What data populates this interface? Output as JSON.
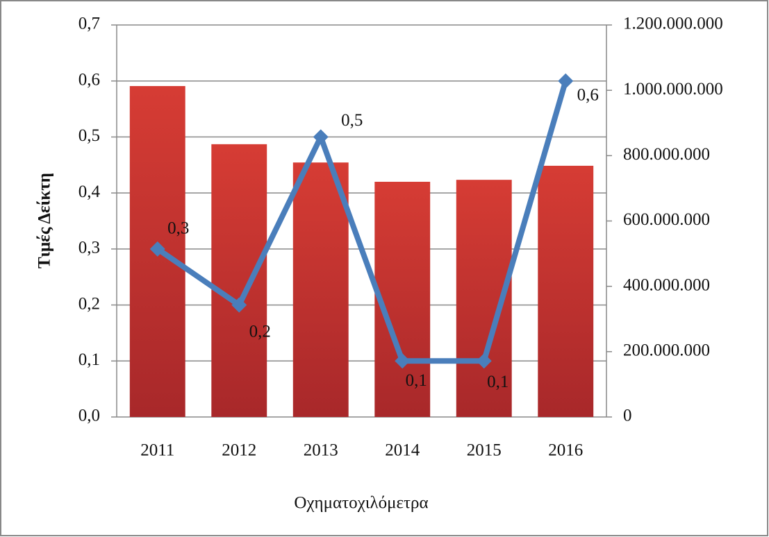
{
  "chart_data": {
    "type": "bar-line",
    "x_label": "Οχηματοχιλόμετρα",
    "y_label": "Τιμές Δείκτη",
    "categories": [
      "2011",
      "2012",
      "2013",
      "2014",
      "2015",
      "2016"
    ],
    "series": [
      {
        "type": "bar",
        "axis": "y2",
        "color": "#c0392b",
        "values": [
          1013000000,
          835000000,
          779000000,
          720000000,
          726000000,
          769000000
        ]
      },
      {
        "type": "line",
        "axis": "y",
        "color": "#4a7ebb",
        "values": [
          0.3,
          0.2,
          0.5,
          0.1,
          0.1,
          0.6
        ],
        "value_labels": [
          "0,3",
          "0,2",
          "0,5",
          "0,1",
          "0,1",
          "0,6"
        ]
      }
    ],
    "ylim": [
      0,
      0.7
    ],
    "yticks": [
      {
        "value": 0,
        "label": "0,0"
      },
      {
        "value": 0.1,
        "label": "0,1"
      },
      {
        "value": 0.2,
        "label": "0,2"
      },
      {
        "value": 0.3,
        "label": "0,3"
      },
      {
        "value": 0.4,
        "label": "0,4"
      },
      {
        "value": 0.5,
        "label": "0,5"
      },
      {
        "value": 0.6,
        "label": "0,6"
      },
      {
        "value": 0.7,
        "label": "0,7"
      }
    ],
    "y2lim": [
      0,
      1200000000
    ],
    "y2ticks": [
      0,
      {
        "value": 200000000,
        "label": "200.000.000"
      },
      {
        "value": 400000000,
        "label": "400.000.000"
      },
      {
        "value": 600000000,
        "label": "600.000.000"
      },
      {
        "value": 800000000,
        "label": "800.000.000"
      },
      {
        "value": 1000000000,
        "label": "1.000.000.000"
      },
      {
        "value": 1200000000,
        "label": "1.200.000.000"
      }
    ],
    "grid": true
  }
}
